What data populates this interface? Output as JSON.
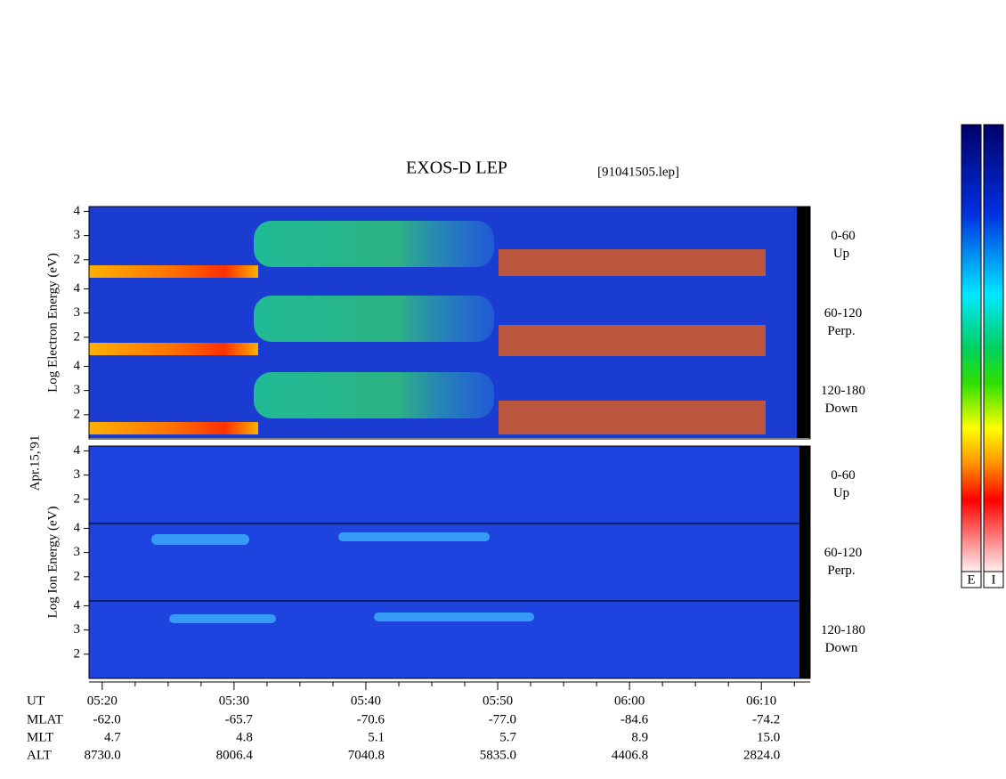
{
  "chart_data": {
    "type": "spectrogram",
    "title": "EXOS-D LEP",
    "filename": "[91041505.lep]",
    "date": "Apr.15,'91",
    "ylim": [
      1,
      4.2
    ],
    "yticks": [
      2,
      3,
      4
    ],
    "xlim": [
      319,
      373.7
    ],
    "xlabel": "UT",
    "xticks": [
      {
        "value": 320,
        "label": "05:20"
      },
      {
        "value": 330,
        "label": "05:30"
      },
      {
        "value": 340,
        "label": "05:40"
      },
      {
        "value": 350,
        "label": "05:50"
      },
      {
        "value": 360,
        "label": "06:00"
      },
      {
        "value": 370,
        "label": "06:10"
      }
    ],
    "xminorticks": [
      322.5,
      325,
      327.5,
      332.5,
      335,
      337.5,
      342.5,
      345,
      347.5,
      352.5,
      355,
      357.5,
      362.5,
      365,
      367.5,
      372.5
    ],
    "groups": [
      {
        "ylabel": "Log Electron Energy (eV)",
        "panels": [
          {
            "range": "0-60",
            "direction": "Up"
          },
          {
            "range": "60-120",
            "direction": "Perp."
          },
          {
            "range": "120-180",
            "direction": "Down"
          }
        ]
      },
      {
        "ylabel": "Log Ion Energy (eV)",
        "panels": [
          {
            "range": "0-60",
            "direction": "Up"
          },
          {
            "range": "60-120",
            "direction": "Perp."
          },
          {
            "range": "120-180",
            "direction": "Down"
          }
        ]
      }
    ],
    "orbit": [
      {
        "name": "MLAT",
        "values": [
          "-62.0",
          "-65.7",
          "-70.6",
          "-77.0",
          "-84.6",
          "-74.2"
        ]
      },
      {
        "name": "MLT",
        "values": [
          "4.7",
          "4.8",
          "5.1",
          "5.7",
          "8.9",
          "15.0"
        ]
      },
      {
        "name": "ALT",
        "values": [
          "8730.0",
          "8006.4",
          "7040.8",
          "5835.0",
          "4406.8",
          "2824.0"
        ]
      }
    ],
    "colorbar_labels": [
      "E",
      "I"
    ]
  }
}
